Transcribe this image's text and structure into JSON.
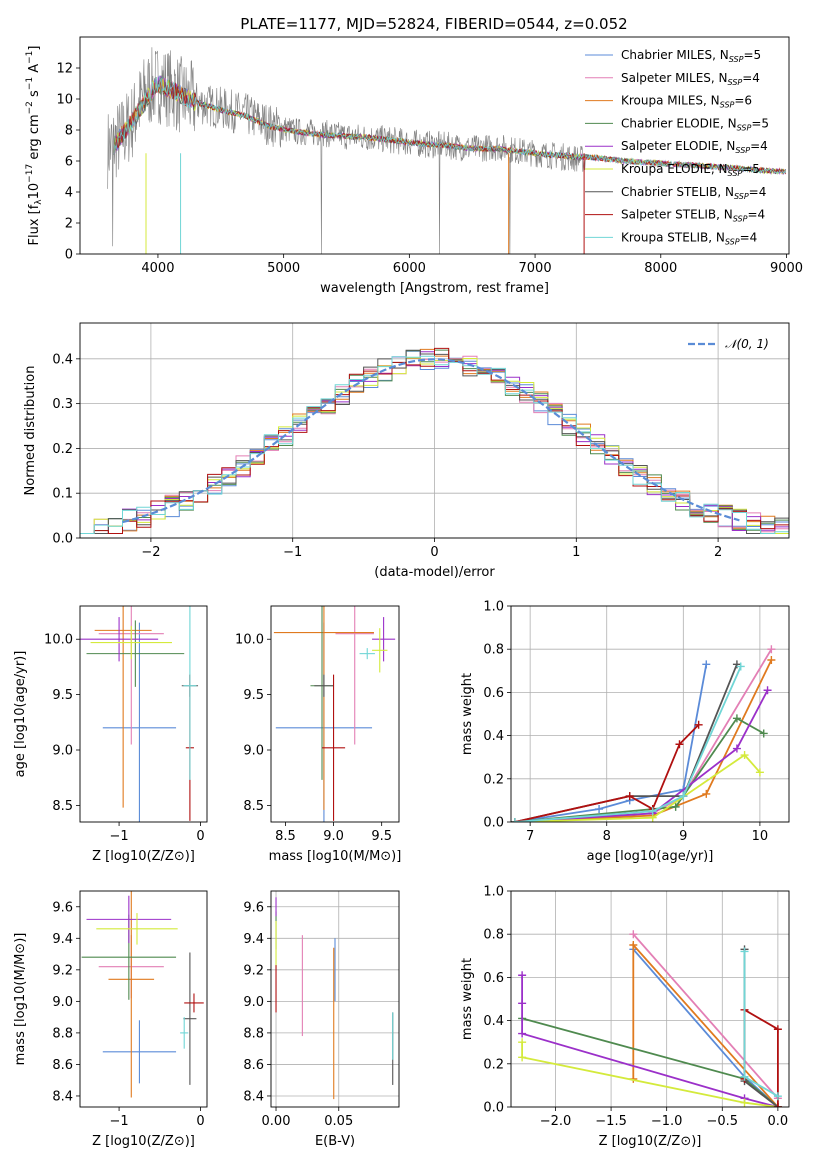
{
  "figure_title": "PLATE=1177, MJD=52824, FIBERID=0544, z=0.052",
  "colors": {
    "Chabrier MILES": "#5b8bd8",
    "Salpeter MILES": "#e37fb5",
    "Kroupa MILES": "#e07a1f",
    "Chabrier ELODIE": "#4f8a4f",
    "Salpeter ELODIE": "#9b30c9",
    "Kroupa ELODIE": "#d4ea3c",
    "Chabrier STELIB": "#555555",
    "Salpeter STELIB": "#b01010",
    "Kroupa STELIB": "#70d6d6",
    "data": "#7f7f7f",
    "normal": "#5a8cd6"
  },
  "legend_labels": {
    "models": [
      {
        "name": "Chabrier MILES",
        "label": "Chabrier MILES, N",
        "sub": "SSP",
        "tail": "=5"
      },
      {
        "name": "Salpeter MILES",
        "label": "Salpeter MILES, N",
        "sub": "SSP",
        "tail": "=4"
      },
      {
        "name": "Kroupa MILES",
        "label": "Kroupa MILES, N",
        "sub": "SSP",
        "tail": "=6"
      },
      {
        "name": "Chabrier ELODIE",
        "label": "Chabrier ELODIE, N",
        "sub": "SSP",
        "tail": "=5"
      },
      {
        "name": "Salpeter ELODIE",
        "label": "Salpeter ELODIE, N",
        "sub": "SSP",
        "tail": "=4"
      },
      {
        "name": "Kroupa ELODIE",
        "label": "Kroupa ELODIE, N",
        "sub": "SSP",
        "tail": "=5"
      },
      {
        "name": "Chabrier STELIB",
        "label": "Chabrier STELIB, N",
        "sub": "SSP",
        "tail": "=4"
      },
      {
        "name": "Salpeter STELIB",
        "label": "Salpeter STELIB, N",
        "sub": "SSP",
        "tail": "=4"
      },
      {
        "name": "Kroupa STELIB",
        "label": "Kroupa STELIB, N",
        "sub": "SSP",
        "tail": "=4"
      }
    ],
    "normal": "𝒩(0, 1)"
  },
  "chart_data": [
    {
      "id": "spectrum",
      "type": "line",
      "xlabel": "wavelength [Angstrom, rest frame]",
      "ylabel": "Flux [f_λ 10^-17 erg cm^-2 s^-1 A^-1]",
      "xlim": [
        3380,
        9020
      ],
      "ylim": [
        0,
        14
      ],
      "xticks": [
        4000,
        5000,
        6000,
        7000,
        8000,
        9000
      ],
      "yticks": [
        0,
        2,
        4,
        6,
        8,
        10,
        12
      ],
      "legend_position": "top-right",
      "grid": false,
      "data_x": [
        3600,
        3700,
        3800,
        3900,
        4000,
        4100,
        4200,
        4300,
        4500,
        4700,
        4900,
        5100,
        5300,
        5500,
        5700,
        5900,
        6100,
        6300,
        6500,
        6700,
        6900,
        7100,
        7300,
        7400
      ],
      "data_y": [
        6.8,
        7.5,
        8.6,
        10.5,
        11.0,
        10.7,
        10.1,
        9.8,
        9.4,
        9.0,
        8.3,
        7.9,
        7.8,
        7.6,
        7.5,
        7.3,
        7.1,
        7.0,
        6.8,
        6.9,
        6.6,
        6.4,
        6.2,
        6.1
      ],
      "model_x": [
        3650,
        3800,
        3950,
        4000,
        4100,
        4200,
        4300,
        4500,
        4700,
        4900,
        5100,
        5300,
        5500,
        5700,
        5900,
        6100,
        6300,
        6500,
        6700,
        6900,
        7100,
        7300,
        7500,
        7700,
        7900,
        8100,
        8300,
        8500,
        8800,
        9000
      ],
      "model_y": [
        7.0,
        8.6,
        10.5,
        11.0,
        10.6,
        10.2,
        9.8,
        9.3,
        8.9,
        8.2,
        7.9,
        7.7,
        7.6,
        7.5,
        7.3,
        7.1,
        7.0,
        6.8,
        6.8,
        6.6,
        6.4,
        6.3,
        6.2,
        6.0,
        5.9,
        5.8,
        5.7,
        5.6,
        5.4,
        5.3
      ]
    },
    {
      "id": "residuals",
      "type": "histogram",
      "xlabel": "(data-model)/error",
      "ylabel": "Normed distribution",
      "xlim": [
        -2.5,
        2.5
      ],
      "ylim": [
        0,
        0.48
      ],
      "xticks": [
        -2,
        -1,
        0,
        1,
        2
      ],
      "yticks": [
        0.0,
        0.1,
        0.2,
        0.3,
        0.4
      ],
      "grid": true,
      "legend_position": "top-right",
      "bin_start": -2.5,
      "bin_width": 0.1
    },
    {
      "id": "age_vs_Z",
      "type": "errorbar",
      "xlabel": "Z [log10(Z/Z⊙)]",
      "ylabel": "age [log10(age/yr)]",
      "xlim": [
        -1.48,
        0.08
      ],
      "ylim": [
        8.35,
        10.3
      ],
      "xticks": [
        -1,
        0
      ],
      "yticks": [
        8.5,
        9.0,
        9.5,
        10.0
      ],
      "grid": false,
      "points": [
        {
          "series": "Chabrier MILES",
          "x": -0.75,
          "xerr": 0.45,
          "y": 9.2,
          "yerr": 0.95
        },
        {
          "series": "Salpeter MILES",
          "x": -0.85,
          "xerr": 0.4,
          "y": 10.05,
          "yerr": 1.0
        },
        {
          "series": "Kroupa MILES",
          "x": -0.95,
          "xerr": 0.35,
          "y": 10.08,
          "yerr": 1.6
        },
        {
          "series": "Chabrier ELODIE",
          "x": -0.8,
          "xerr": 0.6,
          "y": 9.87,
          "yerr": 0.3
        },
        {
          "series": "Salpeter ELODIE",
          "x": -1.0,
          "xerr": 0.48,
          "y": 10.0,
          "yerr": 0.2
        },
        {
          "series": "Kroupa ELODIE",
          "x": -0.85,
          "xerr": 0.5,
          "y": 9.97,
          "yerr": 0.15
        },
        {
          "series": "Chabrier STELIB",
          "x": -0.13,
          "xerr": 0.1,
          "y": 9.58,
          "yerr": 0.1
        },
        {
          "series": "Salpeter STELIB",
          "x": -0.13,
          "xerr": 0.05,
          "y": 9.02,
          "yerr": 0.66
        },
        {
          "series": "Kroupa STELIB",
          "x": -0.13,
          "xerr": 0.08,
          "y": 9.58,
          "yerr": 0.85
        }
      ]
    },
    {
      "id": "age_vs_mass",
      "type": "errorbar",
      "xlabel": "mass [log10(M/M⊙)]",
      "ylabel": "",
      "xlim": [
        8.35,
        9.68
      ],
      "ylim": [
        8.35,
        10.3
      ],
      "xticks": [
        8.5,
        9.0,
        9.5
      ],
      "yticks": [
        8.5,
        9.0,
        9.5,
        10.0
      ],
      "grid": false,
      "points": [
        {
          "series": "Chabrier MILES",
          "x": 8.9,
          "xerr": 0.5,
          "y": 9.2,
          "yerr": 0.95
        },
        {
          "series": "Salpeter MILES",
          "x": 9.22,
          "xerr": 0.2,
          "y": 10.05,
          "yerr": 1.0
        },
        {
          "series": "Kroupa MILES",
          "x": 8.9,
          "xerr": 0.52,
          "y": 10.06,
          "yerr": 1.6
        },
        {
          "series": "Chabrier ELODIE",
          "x": 8.88,
          "xerr": 0.12,
          "y": 9.58,
          "yerr": 0.85
        },
        {
          "series": "Salpeter ELODIE",
          "x": 9.52,
          "xerr": 0.12,
          "y": 10.0,
          "yerr": 0.2
        },
        {
          "series": "Kroupa ELODIE",
          "x": 9.48,
          "xerr": 0.08,
          "y": 9.9,
          "yerr": 0.2
        },
        {
          "series": "Chabrier STELIB",
          "x": 8.9,
          "xerr": 0.1,
          "y": 9.58,
          "yerr": 0.1
        },
        {
          "series": "Salpeter STELIB",
          "x": 9.0,
          "xerr": 0.12,
          "y": 9.02,
          "yerr": 0.66
        },
        {
          "series": "Kroupa STELIB",
          "x": 9.35,
          "xerr": 0.08,
          "y": 9.87,
          "yerr": 0.05
        }
      ]
    },
    {
      "id": "massweight_vs_age",
      "type": "line",
      "xlabel": "age [log10(age/yr)]",
      "ylabel": "mass weight",
      "xlim": [
        6.75,
        10.38
      ],
      "ylim": [
        0,
        1
      ],
      "xticks": [
        7,
        8,
        9,
        10
      ],
      "yticks": [
        0.0,
        0.2,
        0.4,
        0.6,
        0.8,
        1.0
      ],
      "grid": true,
      "series": [
        {
          "name": "Chabrier MILES",
          "x": [
            6.8,
            7.9,
            8.3,
            9.0,
            9.3
          ],
          "y": [
            0.0,
            0.06,
            0.1,
            0.15,
            0.73
          ]
        },
        {
          "name": "Salpeter MILES",
          "x": [
            6.8,
            8.6,
            9.0,
            10.15
          ],
          "y": [
            0.0,
            0.04,
            0.12,
            0.8
          ]
        },
        {
          "name": "Kroupa MILES",
          "x": [
            6.8,
            8.6,
            9.3,
            10.15
          ],
          "y": [
            0.0,
            0.03,
            0.13,
            0.75
          ]
        },
        {
          "name": "Chabrier ELODIE",
          "x": [
            6.8,
            8.9,
            9.7,
            10.05
          ],
          "y": [
            0.0,
            0.07,
            0.48,
            0.41
          ]
        },
        {
          "name": "Salpeter ELODIE",
          "x": [
            6.8,
            8.6,
            9.7,
            10.1
          ],
          "y": [
            0.0,
            0.04,
            0.34,
            0.61
          ]
        },
        {
          "name": "Kroupa ELODIE",
          "x": [
            6.8,
            8.6,
            9.8,
            10.0
          ],
          "y": [
            0.0,
            0.02,
            0.31,
            0.23
          ]
        },
        {
          "name": "Chabrier STELIB",
          "x": [
            6.8,
            8.3,
            9.0,
            9.7
          ],
          "y": [
            0.0,
            0.12,
            0.12,
            0.73
          ]
        },
        {
          "name": "Salpeter STELIB",
          "x": [
            6.8,
            8.3,
            8.6,
            8.95,
            9.2
          ],
          "y": [
            0.0,
            0.12,
            0.06,
            0.36,
            0.45
          ]
        },
        {
          "name": "Kroupa STELIB",
          "x": [
            6.8,
            8.6,
            9.0,
            9.75
          ],
          "y": [
            0.0,
            0.05,
            0.12,
            0.72
          ]
        }
      ]
    },
    {
      "id": "mass_vs_Z",
      "type": "errorbar",
      "xlabel": "Z [log10(Z/Z⊙)]",
      "ylabel": "mass [log10(M/M⊙)]",
      "xlim": [
        -1.48,
        0.08
      ],
      "ylim": [
        8.33,
        9.7
      ],
      "xticks": [
        -1,
        0
      ],
      "yticks": [
        8.4,
        8.6,
        8.8,
        9.0,
        9.2,
        9.4,
        9.6
      ],
      "grid": false,
      "points": [
        {
          "series": "Chabrier MILES",
          "x": -0.75,
          "xerr": 0.45,
          "y": 8.68,
          "yerr": 0.2
        },
        {
          "series": "Salpeter MILES",
          "x": -0.85,
          "xerr": 0.4,
          "y": 9.22,
          "yerr": 0.2
        },
        {
          "series": "Kroupa MILES",
          "x": -0.85,
          "xerr": 0.28,
          "y": 9.14,
          "yerr": 0.75
        },
        {
          "series": "Chabrier ELODIE",
          "x": -0.88,
          "xerr": 0.58,
          "y": 9.28,
          "yerr": 0.27
        },
        {
          "series": "Salpeter ELODIE",
          "x": -0.88,
          "xerr": 0.52,
          "y": 9.52,
          "yerr": 0.15
        },
        {
          "series": "Kroupa ELODIE",
          "x": -0.78,
          "xerr": 0.5,
          "y": 9.46,
          "yerr": 0.1
        },
        {
          "series": "Chabrier STELIB",
          "x": -0.13,
          "xerr": 0.08,
          "y": 8.89,
          "yerr": 0.42
        },
        {
          "series": "Salpeter STELIB",
          "x": -0.08,
          "xerr": 0.12,
          "y": 8.99,
          "yerr": 0.06
        },
        {
          "series": "Kroupa STELIB",
          "x": -0.2,
          "xerr": 0.05,
          "y": 8.8,
          "yerr": 0.1
        }
      ]
    },
    {
      "id": "mass_vs_ebv",
      "type": "errorbar",
      "xlabel": "E(B-V)",
      "ylabel": "",
      "xlim": [
        -0.004,
        0.098
      ],
      "ylim": [
        8.33,
        9.7
      ],
      "xticks": [
        0.0,
        0.05
      ],
      "xticklabels": [
        "0.00",
        "0.05"
      ],
      "yticks": [
        8.4,
        8.6,
        8.8,
        9.0,
        9.2,
        9.4,
        9.6
      ],
      "grid": true,
      "points": [
        {
          "series": "Chabrier MILES",
          "x": 0.047,
          "xerr": 0,
          "y": 9.2,
          "yerr": 0.2
        },
        {
          "series": "Salpeter MILES",
          "x": 0.021,
          "xerr": 0,
          "y": 9.1,
          "yerr": 0.32
        },
        {
          "series": "Kroupa MILES",
          "x": 0.046,
          "xerr": 0,
          "y": 8.86,
          "yerr": 0.48
        },
        {
          "series": "Chabrier ELODIE",
          "x": 0.0,
          "xerr": 0,
          "y": 9.45,
          "yerr": 0.12
        },
        {
          "series": "Salpeter ELODIE",
          "x": 0.0,
          "xerr": 0,
          "y": 9.6,
          "yerr": 0.06
        },
        {
          "series": "Kroupa ELODIE",
          "x": 0.0,
          "xerr": 0,
          "y": 9.36,
          "yerr": 0.15
        },
        {
          "series": "Chabrier STELIB",
          "x": 0.093,
          "xerr": 0,
          "y": 8.7,
          "yerr": 0.23
        },
        {
          "series": "Salpeter STELIB",
          "x": 0.0,
          "xerr": 0,
          "y": 9.08,
          "yerr": 0.15
        },
        {
          "series": "Kroupa STELIB",
          "x": 0.093,
          "xerr": 0,
          "y": 8.78,
          "yerr": 0.15
        }
      ]
    },
    {
      "id": "massweight_vs_Z",
      "type": "line",
      "xlabel": "Z [log10(Z/Z⊙)]",
      "ylabel": "mass weight",
      "xlim": [
        -2.4,
        0.1
      ],
      "ylim": [
        0,
        1
      ],
      "xticks": [
        -2.0,
        -1.5,
        -1.0,
        -0.5,
        0.0
      ],
      "yticks": [
        0.0,
        0.2,
        0.4,
        0.6,
        0.8,
        1.0
      ],
      "grid": true,
      "series": [
        {
          "name": "Chabrier MILES",
          "x": [
            -1.3,
            -0.3,
            0.0
          ],
          "y": [
            0.73,
            0.14,
            0.0
          ]
        },
        {
          "name": "Salpeter MILES",
          "x": [
            -1.3,
            0.0
          ],
          "y": [
            0.8,
            0.04
          ]
        },
        {
          "name": "Kroupa MILES",
          "x": [
            -1.3,
            -1.3,
            0.0
          ],
          "y": [
            0.13,
            0.75,
            0.0
          ]
        },
        {
          "name": "Chabrier ELODIE",
          "x": [
            -2.3,
            -0.3,
            0.0
          ],
          "y": [
            0.41,
            0.13,
            0.0
          ]
        },
        {
          "name": "Salpeter ELODIE",
          "x": [
            -2.3,
            -2.3,
            -2.3,
            -0.3,
            0.0
          ],
          "y": [
            0.61,
            0.48,
            0.34,
            0.04,
            0.0
          ]
        },
        {
          "name": "Kroupa ELODIE",
          "x": [
            -2.3,
            -2.3,
            -0.3,
            0.0
          ],
          "y": [
            0.3,
            0.23,
            0.02,
            0.0
          ]
        },
        {
          "name": "Chabrier STELIB",
          "x": [
            -0.3,
            -0.3,
            0.0
          ],
          "y": [
            0.73,
            0.12,
            0.0
          ]
        },
        {
          "name": "Salpeter STELIB",
          "x": [
            -0.3,
            -0.3,
            0.0,
            0.0
          ],
          "y": [
            0.13,
            0.45,
            0.36,
            0.0
          ]
        },
        {
          "name": "Kroupa STELIB",
          "x": [
            -0.3,
            -0.3,
            0.0
          ],
          "y": [
            0.72,
            0.14,
            0.05
          ]
        }
      ]
    }
  ]
}
